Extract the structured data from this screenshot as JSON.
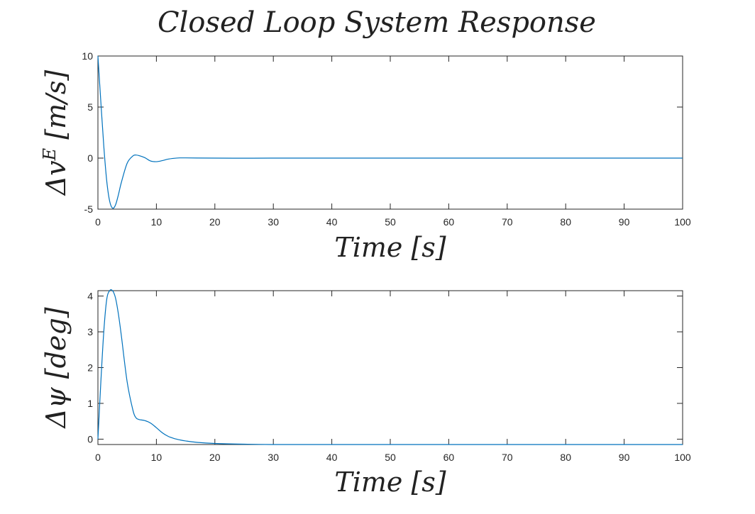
{
  "figure": {
    "title": "Closed Loop System Response",
    "line_color": "#0072BD",
    "axis_color": "#262626"
  },
  "chart_data": [
    {
      "type": "line",
      "title": "",
      "xlabel": "Time [s]",
      "ylabel": "Δv^E [m/s]",
      "ylabel_parts": {
        "prefix": "Δv",
        "sup": "E",
        "suffix": " [m/s]"
      },
      "xlim": [
        0,
        100
      ],
      "ylim": [
        -5,
        10
      ],
      "xticks": [
        0,
        10,
        20,
        30,
        40,
        50,
        60,
        70,
        80,
        90,
        100
      ],
      "yticks": [
        -5,
        0,
        5,
        10
      ],
      "grid": false,
      "series": [
        {
          "x": [
            0,
            0.5,
            1,
            1.5,
            2,
            2.5,
            3,
            3.5,
            4,
            5,
            6,
            6.5,
            7,
            8,
            9,
            10,
            11,
            12,
            13,
            14,
            15,
            17,
            20,
            25,
            30,
            40,
            50,
            60,
            70,
            80,
            90,
            100
          ],
          "y": [
            10,
            5.5,
            1.2,
            -2.2,
            -4.2,
            -4.9,
            -4.6,
            -3.6,
            -2.4,
            -0.5,
            0.22,
            0.3,
            0.25,
            0.05,
            -0.28,
            -0.35,
            -0.25,
            -0.1,
            -0.02,
            0.02,
            0.02,
            0.01,
            0.0,
            -0.01,
            0.0,
            0.0,
            0.0,
            0.0,
            0.0,
            0.0,
            0.0,
            0.0
          ]
        }
      ]
    },
    {
      "type": "line",
      "title": "",
      "xlabel": "Time [s]",
      "ylabel": "Δψ [deg]",
      "ylabel_parts": {
        "prefix": "Δψ",
        "sup": "",
        "suffix": " [deg]"
      },
      "xlim": [
        0,
        100
      ],
      "ylim": [
        -0.15,
        4.15
      ],
      "xticks": [
        0,
        10,
        20,
        30,
        40,
        50,
        60,
        70,
        80,
        90,
        100
      ],
      "yticks": [
        0,
        1,
        2,
        3,
        4
      ],
      "grid": false,
      "series": [
        {
          "x": [
            0,
            0.5,
            1,
            1.5,
            2,
            2.5,
            3,
            3.5,
            4,
            5,
            6,
            6.5,
            7,
            8,
            9,
            10,
            11,
            12,
            13,
            14,
            15,
            17,
            20,
            25,
            30,
            40,
            50,
            60,
            70,
            80,
            90,
            100
          ],
          "y": [
            0,
            1.6,
            3.0,
            3.9,
            4.15,
            4.15,
            3.95,
            3.5,
            2.9,
            1.6,
            0.8,
            0.6,
            0.55,
            0.52,
            0.45,
            0.32,
            0.18,
            0.08,
            0.02,
            -0.02,
            -0.05,
            -0.09,
            -0.12,
            -0.14,
            -0.15,
            -0.15,
            -0.15,
            -0.15,
            -0.15,
            -0.15,
            -0.15,
            -0.15
          ]
        }
      ]
    }
  ]
}
